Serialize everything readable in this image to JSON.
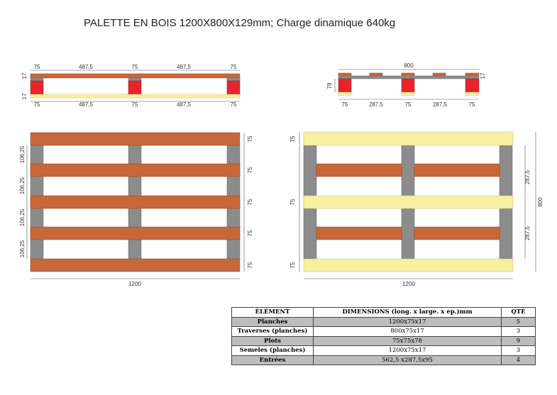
{
  "title": "PALETTE EN BOIS 1200X800X129mm; Charge dinamique 640kg",
  "colors": {
    "planche": "#c8673a",
    "traverse": "#8c8c8c",
    "plot": "#e8232a",
    "semelle": "#f7f0a0"
  },
  "side_view": {
    "top_dims": [
      "75",
      "487,5",
      "75",
      "487,5",
      "75"
    ],
    "bottom_dims": [
      "75",
      "487,5",
      "75",
      "487,5",
      "75"
    ],
    "thickness_top": "17",
    "thickness_bottom": "17"
  },
  "end_view": {
    "width": "800",
    "height": "78",
    "thickness": "17",
    "bottom_dims": [
      "75",
      "287,5",
      "75",
      "287,5",
      "75"
    ]
  },
  "top_view": {
    "plank_widths": [
      "75",
      "75",
      "75",
      "75",
      "75"
    ],
    "gaps": [
      "106,25",
      "106,25",
      "106,25",
      "106,25"
    ],
    "length": "1200"
  },
  "bottom_view": {
    "left_dims": [
      "75",
      "75",
      "75"
    ],
    "right_dims": [
      "287,5",
      "287,5"
    ],
    "width": "800",
    "length": "1200"
  },
  "table": {
    "headers": [
      "ÉLÉMENT",
      "DIMENSIONS (long. x large. x ep.)mm",
      "QTÉ"
    ],
    "rows": [
      [
        "Planches",
        "1200x75x17",
        "5"
      ],
      [
        "Traverses (planches)",
        "800x75x17",
        "3"
      ],
      [
        "Plots",
        "75x75x78",
        "9"
      ],
      [
        "Semeles (planches)",
        "1200x75x17",
        "3"
      ],
      [
        "Entrées",
        "562,5 x287,5x95",
        "4"
      ]
    ]
  }
}
